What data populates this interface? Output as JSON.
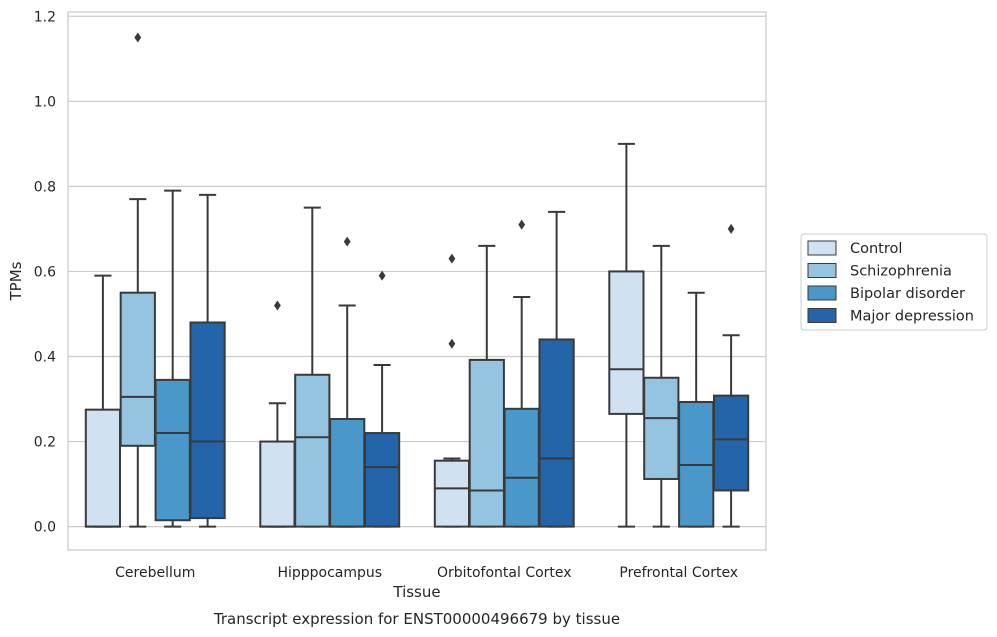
{
  "chart_data": {
    "type": "box",
    "xlabel": "Tissue",
    "ylabel": "TPMs",
    "caption": "Transcript expression for ENST00000496679 by tissue",
    "ylim": [
      -0.055,
      1.21
    ],
    "yticks": [
      "0.0",
      "0.2",
      "0.4",
      "0.6",
      "0.8",
      "1.0",
      "1.2"
    ],
    "grid": "horizontal",
    "legend_position": "right",
    "categories": [
      "Cerebellum",
      "Hipppocampus",
      "Orbitofontal Cortex",
      "Prefrontal Cortex"
    ],
    "series": [
      {
        "name": "Control",
        "color": "#d0e1f2",
        "boxes": [
          {
            "whisker_low": 0.0,
            "q1": 0.0,
            "median": 0.0,
            "q3": 0.275,
            "whisker_high": 0.59,
            "outliers": []
          },
          {
            "whisker_low": 0.0,
            "q1": 0.0,
            "median": 0.0,
            "q3": 0.2,
            "whisker_high": 0.29,
            "outliers": [
              0.52
            ]
          },
          {
            "whisker_low": 0.0,
            "q1": 0.0,
            "median": 0.09,
            "q3": 0.155,
            "whisker_high": 0.16,
            "outliers": [
              0.43,
              0.63
            ]
          },
          {
            "whisker_low": 0.0,
            "q1": 0.265,
            "median": 0.37,
            "q3": 0.6,
            "whisker_high": 0.9,
            "outliers": []
          }
        ]
      },
      {
        "name": "Schizophrenia",
        "color": "#94c4df",
        "boxes": [
          {
            "whisker_low": 0.0,
            "q1": 0.19,
            "median": 0.305,
            "q3": 0.55,
            "whisker_high": 0.77,
            "outliers": [
              1.15
            ]
          },
          {
            "whisker_low": 0.0,
            "q1": 0.0,
            "median": 0.21,
            "q3": 0.357,
            "whisker_high": 0.75,
            "outliers": []
          },
          {
            "whisker_low": 0.0,
            "q1": 0.0,
            "median": 0.085,
            "q3": 0.392,
            "whisker_high": 0.66,
            "outliers": []
          },
          {
            "whisker_low": 0.0,
            "q1": 0.112,
            "median": 0.255,
            "q3": 0.35,
            "whisker_high": 0.66,
            "outliers": []
          }
        ]
      },
      {
        "name": "Bipolar disorder",
        "color": "#4a98c9",
        "boxes": [
          {
            "whisker_low": 0.0,
            "q1": 0.015,
            "median": 0.22,
            "q3": 0.345,
            "whisker_high": 0.79,
            "outliers": []
          },
          {
            "whisker_low": 0.0,
            "q1": 0.0,
            "median": 0.0,
            "q3": 0.253,
            "whisker_high": 0.52,
            "outliers": [
              0.67
            ]
          },
          {
            "whisker_low": 0.0,
            "q1": 0.0,
            "median": 0.115,
            "q3": 0.277,
            "whisker_high": 0.54,
            "outliers": [
              0.71
            ]
          },
          {
            "whisker_low": 0.0,
            "q1": 0.0,
            "median": 0.145,
            "q3": 0.293,
            "whisker_high": 0.55,
            "outliers": []
          }
        ]
      },
      {
        "name": "Major depression",
        "color": "#2464a8",
        "boxes": [
          {
            "whisker_low": 0.0,
            "q1": 0.02,
            "median": 0.2,
            "q3": 0.48,
            "whisker_high": 0.78,
            "outliers": []
          },
          {
            "whisker_low": 0.0,
            "q1": 0.0,
            "median": 0.14,
            "q3": 0.22,
            "whisker_high": 0.38,
            "outliers": [
              0.59
            ]
          },
          {
            "whisker_low": 0.0,
            "q1": 0.0,
            "median": 0.16,
            "q3": 0.44,
            "whisker_high": 0.74,
            "outliers": []
          },
          {
            "whisker_low": 0.0,
            "q1": 0.085,
            "median": 0.205,
            "q3": 0.308,
            "whisker_high": 0.45,
            "outliers": [
              0.7
            ]
          }
        ]
      }
    ]
  }
}
